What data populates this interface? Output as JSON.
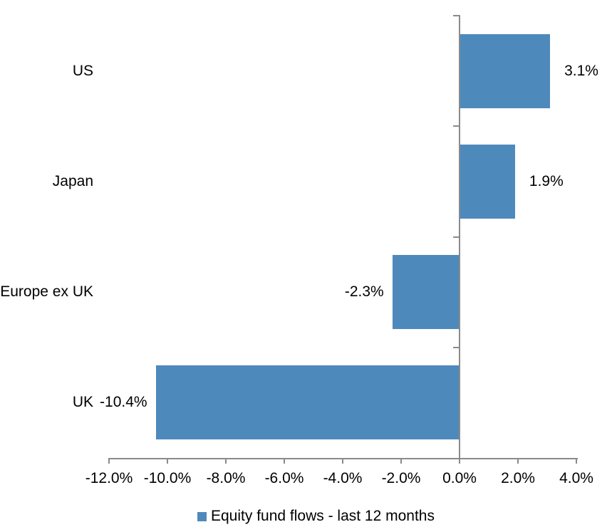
{
  "chart_data": {
    "type": "bar",
    "orientation": "horizontal",
    "categories": [
      "US",
      "Japan",
      "Europe ex UK",
      "UK"
    ],
    "series": [
      {
        "name": "Equity fund flows - last 12 months",
        "values": [
          3.1,
          1.9,
          -2.3,
          -10.4
        ],
        "data_labels": [
          "3.1%",
          "1.9%",
          "-2.3%",
          "-10.4%"
        ]
      }
    ],
    "x_axis": {
      "min": -12.0,
      "max": 4.0,
      "step": 2.0,
      "tick_labels": [
        "-12.0%",
        "-10.0%",
        "-8.0%",
        "-6.0%",
        "-4.0%",
        "-2.0%",
        "0.0%",
        "2.0%",
        "4.0%"
      ]
    },
    "y_axis": {
      "zero_line_at": "0.0%"
    },
    "legend": {
      "position": "bottom",
      "label": "Equity fund flows - last 12 months",
      "marker": "square-icon"
    },
    "grid": false,
    "colors": {
      "bar": "#4e89bc",
      "axis": "#8a8a8a",
      "text": "#000000",
      "background": "#ffffff"
    }
  }
}
